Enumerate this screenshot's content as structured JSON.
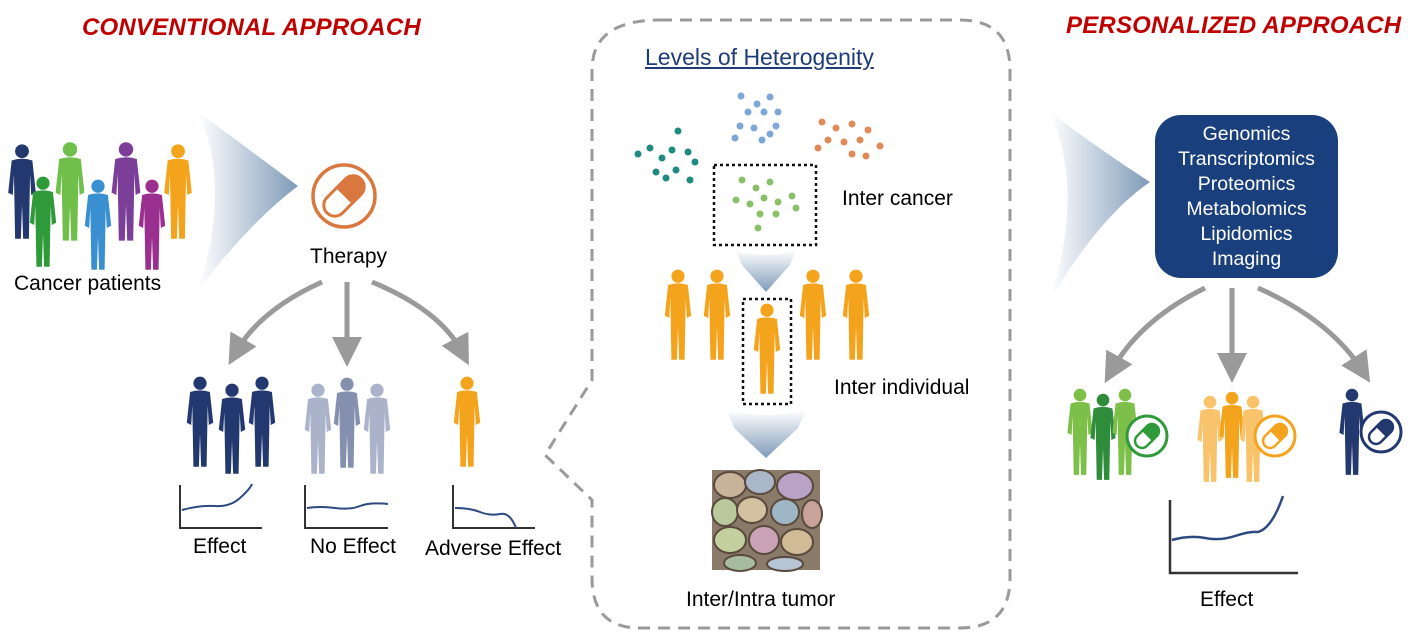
{
  "left": {
    "title": "CONVENTIONAL APPROACH",
    "patients_label": "Cancer patients",
    "therapy_label": "Therapy",
    "outcomes": [
      {
        "label": "Effect"
      },
      {
        "label": "No Effect"
      },
      {
        "label": "Adverse Effect"
      }
    ]
  },
  "center": {
    "title": "Levels of Heterogenity",
    "levels": [
      {
        "label": "Inter cancer"
      },
      {
        "label": "Inter individual"
      },
      {
        "label": "Inter/Intra tumor"
      }
    ]
  },
  "right": {
    "title": "PERSONALIZED APPROACH",
    "omics": [
      "Genomics",
      "Transcriptomics",
      "Proteomics",
      "Metabolomics",
      "Lipidomics",
      "Imaging"
    ],
    "effect_label": "Effect"
  },
  "colors": {
    "title_red": "#c00000",
    "omics_box": "#1a3f7d",
    "arrow_gray": "#9a9a9a",
    "pill_orange": "#d9773f",
    "person_orange": "#f4a41c",
    "person_navy": "#23386e",
    "person_green": "#2f9a3a"
  }
}
